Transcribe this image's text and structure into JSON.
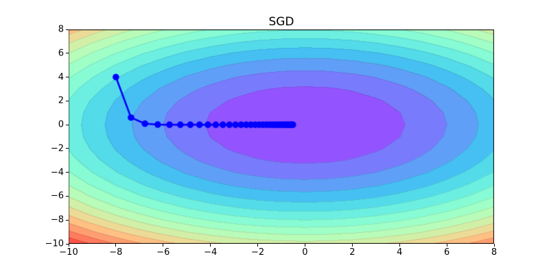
{
  "chart_data": {
    "type": "contour",
    "title": "SGD",
    "xlim": [
      -10,
      8
    ],
    "ylim": [
      -10,
      8
    ],
    "grid": "off",
    "legend": "none",
    "x_ticks": {
      "values": [
        -10,
        -8,
        -6,
        -4,
        -2,
        0,
        2,
        4,
        6,
        8
      ],
      "labels": [
        "−10",
        "−8",
        "−6",
        "−4",
        "−2",
        "0",
        "2",
        "4",
        "6",
        "8"
      ]
    },
    "y_ticks": {
      "values": [
        -10,
        -8,
        -6,
        -4,
        -2,
        0,
        2,
        4,
        6,
        8
      ],
      "labels": [
        "−10",
        "−8",
        "−6",
        "−4",
        "−2",
        "0",
        "2",
        "4",
        "6",
        "8"
      ]
    },
    "contour": {
      "function": "f(x, y) = x^2 + 1.7*y^2",
      "x2_coeff": 1.0,
      "y2_coeff": 1.7,
      "center": [
        0,
        0
      ],
      "grid_step": 1.0,
      "num_bands": 15,
      "level_min": 0,
      "level_max": 270,
      "colormap": "rainbow",
      "alpha_over_white": 0.75,
      "seam_darken": 0.9,
      "band_colors": [
        "#9354ff",
        "#797bfd",
        "#609ff8",
        "#46c0f2",
        "#53dbea",
        "#6cefe0",
        "#86fbd4",
        "#9fffc7",
        "#b9fbb8",
        "#d2efa8",
        "#ecdb97",
        "#ffc084",
        "#ff9f71",
        "#ff7b5e",
        "#ff544a"
      ]
    },
    "trajectory": {
      "color": "#0000ff",
      "line_width": 2.6,
      "marker": "circle",
      "marker_radius": 4.8,
      "points": [
        [
          -8.0,
          4.0
        ],
        [
          -7.36,
          0.6
        ],
        [
          -6.771,
          0.09
        ],
        [
          -6.23,
          0.014
        ],
        [
          -5.731,
          0.002
        ],
        [
          -5.273,
          0.0
        ],
        [
          -4.851,
          0.0
        ],
        [
          -4.463,
          0.0
        ],
        [
          -4.106,
          0.0
        ],
        [
          -3.777,
          0.0
        ],
        [
          -3.475,
          0.0
        ],
        [
          -3.197,
          0.0
        ],
        [
          -2.941,
          0.0
        ],
        [
          -2.706,
          0.0
        ],
        [
          -2.49,
          0.0
        ],
        [
          -2.29,
          0.0
        ],
        [
          -2.107,
          0.0
        ],
        [
          -1.939,
          0.0
        ],
        [
          -1.784,
          0.0
        ],
        [
          -1.641,
          0.0
        ],
        [
          -1.509,
          0.0
        ],
        [
          -1.389,
          0.0
        ],
        [
          -1.278,
          0.0
        ],
        [
          -1.175,
          0.0
        ],
        [
          -1.081,
          0.0
        ],
        [
          -0.995,
          0.0
        ],
        [
          -0.915,
          0.0
        ],
        [
          -0.842,
          0.0
        ],
        [
          -0.775,
          0.0
        ],
        [
          -0.713,
          0.0
        ],
        [
          -0.656,
          0.0
        ],
        [
          -0.603,
          0.0
        ],
        [
          -0.555,
          0.0
        ],
        [
          -0.511,
          0.0
        ]
      ]
    },
    "axes_style": {
      "spine_color": "#000000",
      "tick_color": "#000000",
      "tick_length": 4
    }
  }
}
